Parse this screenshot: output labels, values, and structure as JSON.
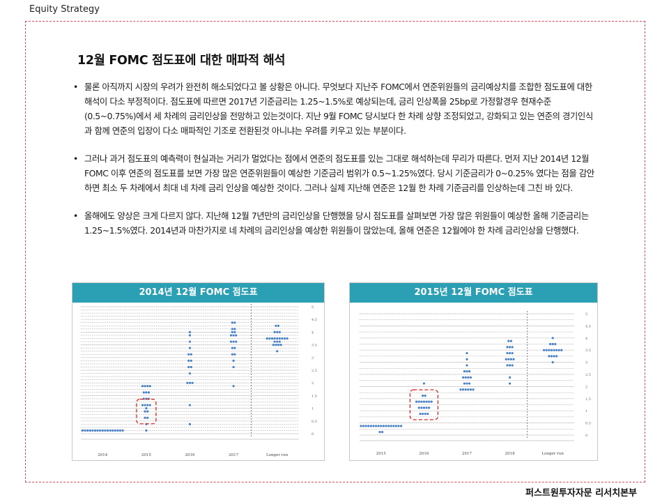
{
  "header": {
    "brand": "Equity Strategy"
  },
  "footer": {
    "company": "퍼스트원투자자문 리서치본부"
  },
  "page_title": "12월 FOMC 점도표에 대한 매파적 해석",
  "bullets": [
    "물론 아직까지 시장의 우려가 완전히 해소되었다고 볼 상황은 아니다. 무엇보다 지난주 FOMC에서 연준위원들의 금리예상치를 조합한 점도표에 대한 해석이 다소 부정적이다. 점도표에 따르면 2017년 기준금리는 1.25~1.5%로 예상되는데, 금리 인상폭을 25bp로 가정할경우 현재수준 (0.5~0.75%)에서 세 차례의 금리인상을 전망하고 있는것이다. 지난 9월 FOMC 당시보다 한 차례 상향 조정되었고, 강화되고 있는 연준의 경기인식과 함께 연준의 입장이 다소 매파적인 기조로 전환된것 아니냐는 우려를 키우고 있는 부분이다.",
    "그러나 과거 점도표의 예측력이 현실과는 거리가 멀었다는 점에서 연준의 점도표를 있는 그대로 해석하는데 무리가 따른다. 먼저 지난 2014년 12월 FOMC 이후 연준의 점도표를 보면 가장 많은 연준위원들이 예상한 기준금리 범위가 0.5~1.25%였다. 당시 기준금리가 0~0.25% 였다는 점을 감안하면 최소 두 차례에서 최대 네 차례 금리 인상을 예상한 것이다. 그러나 실제 지난해 연준은 12월 한 차례 기준금리를 인상하는데 그친 바 있다.",
    "올해에도 양상은 크게 다르지 않다. 지난해 12월 7년만의 금리인상을 단행했을 당시 점도표를 살펴보면 가장 많은 위원들이 예상한 올해 기준금리는 1.25~1.5%였다. 2014년과 마찬가지로 네 차례의 금리인상을 예상한 위원들이 많았는데, 올해 연준은 12월에야 한 차례 금리인상을 단행했다."
  ],
  "chart_data": [
    {
      "type": "scatter",
      "title": "2014년 12월 FOMC 점도표",
      "categories": [
        "2014",
        "2015",
        "2016",
        "2017",
        "Longer run"
      ],
      "y_ticks": [
        "0",
        "0.5",
        "1",
        "1.5",
        "2",
        "2.5",
        "3",
        "3.5",
        "4",
        "4.5",
        "5"
      ],
      "ylim": [
        0,
        5
      ],
      "highlight": {
        "category": "2015",
        "y_range": [
          0.5,
          1.25
        ],
        "color": "#dd3333"
      },
      "points": [
        {
          "x": "2014",
          "y": 0.125,
          "count": 17
        },
        {
          "x": "2015",
          "y": 0.125,
          "count": 1
        },
        {
          "x": "2015",
          "y": 0.375,
          "count": 1
        },
        {
          "x": "2015",
          "y": 0.625,
          "count": 2
        },
        {
          "x": "2015",
          "y": 0.875,
          "count": 2
        },
        {
          "x": "2015",
          "y": 1.0,
          "count": 1
        },
        {
          "x": "2015",
          "y": 1.125,
          "count": 4
        },
        {
          "x": "2015",
          "y": 1.375,
          "count": 3
        },
        {
          "x": "2015",
          "y": 1.625,
          "count": 3
        },
        {
          "x": "2015",
          "y": 1.875,
          "count": 4
        },
        {
          "x": "2016",
          "y": 0.375,
          "count": 1
        },
        {
          "x": "2016",
          "y": 1.125,
          "count": 1
        },
        {
          "x": "2016",
          "y": 2.0,
          "count": 3
        },
        {
          "x": "2016",
          "y": 2.375,
          "count": 1
        },
        {
          "x": "2016",
          "y": 2.625,
          "count": 2
        },
        {
          "x": "2016",
          "y": 2.875,
          "count": 2
        },
        {
          "x": "2016",
          "y": 3.125,
          "count": 2
        },
        {
          "x": "2016",
          "y": 3.375,
          "count": 1
        },
        {
          "x": "2016",
          "y": 3.625,
          "count": 1
        },
        {
          "x": "2016",
          "y": 3.875,
          "count": 1
        },
        {
          "x": "2016",
          "y": 4.0,
          "count": 1
        },
        {
          "x": "2017",
          "y": 1.875,
          "count": 1
        },
        {
          "x": "2017",
          "y": 2.625,
          "count": 1
        },
        {
          "x": "2017",
          "y": 2.875,
          "count": 1
        },
        {
          "x": "2017",
          "y": 3.125,
          "count": 2
        },
        {
          "x": "2017",
          "y": 3.375,
          "count": 2
        },
        {
          "x": "2017",
          "y": 3.625,
          "count": 3
        },
        {
          "x": "2017",
          "y": 3.875,
          "count": 3
        },
        {
          "x": "2017",
          "y": 4.0,
          "count": 2
        },
        {
          "x": "2017",
          "y": 4.125,
          "count": 2
        },
        {
          "x": "2017",
          "y": 4.375,
          "count": 2
        },
        {
          "x": "Longer run",
          "y": 3.25,
          "count": 1
        },
        {
          "x": "Longer run",
          "y": 3.5,
          "count": 4
        },
        {
          "x": "Longer run",
          "y": 3.625,
          "count": 3
        },
        {
          "x": "Longer run",
          "y": 3.75,
          "count": 9
        },
        {
          "x": "Longer run",
          "y": 4.0,
          "count": 3
        },
        {
          "x": "Longer run",
          "y": 4.25,
          "count": 2
        }
      ]
    },
    {
      "type": "scatter",
      "title": "2015년 12월 FOMC 점도표",
      "categories": [
        "2015",
        "2016",
        "2017",
        "2018",
        "Longer run"
      ],
      "y_ticks": [
        "0",
        "0.5",
        "1",
        "1.5",
        "2",
        "2.5",
        "3",
        "3.5",
        "4",
        "4.5",
        "5"
      ],
      "ylim": [
        0,
        5
      ],
      "highlight": {
        "category": "2016",
        "y_range": [
          0.75,
          1.75
        ],
        "color": "#dd3333"
      },
      "points": [
        {
          "x": "2015",
          "y": 0.125,
          "count": 2
        },
        {
          "x": "2015",
          "y": 0.375,
          "count": 17
        },
        {
          "x": "2016",
          "y": 0.875,
          "count": 4
        },
        {
          "x": "2016",
          "y": 1.125,
          "count": 5
        },
        {
          "x": "2016",
          "y": 1.375,
          "count": 7
        },
        {
          "x": "2016",
          "y": 1.625,
          "count": 2
        },
        {
          "x": "2016",
          "y": 2.125,
          "count": 1
        },
        {
          "x": "2017",
          "y": 1.875,
          "count": 6
        },
        {
          "x": "2017",
          "y": 2.125,
          "count": 3
        },
        {
          "x": "2017",
          "y": 2.375,
          "count": 4
        },
        {
          "x": "2017",
          "y": 2.625,
          "count": 3
        },
        {
          "x": "2017",
          "y": 2.875,
          "count": 1
        },
        {
          "x": "2017",
          "y": 3.125,
          "count": 1
        },
        {
          "x": "2017",
          "y": 3.375,
          "count": 1
        },
        {
          "x": "2018",
          "y": 2.125,
          "count": 1
        },
        {
          "x": "2018",
          "y": 2.375,
          "count": 1
        },
        {
          "x": "2018",
          "y": 2.875,
          "count": 3
        },
        {
          "x": "2018",
          "y": 3.125,
          "count": 4
        },
        {
          "x": "2018",
          "y": 3.375,
          "count": 3
        },
        {
          "x": "2018",
          "y": 3.625,
          "count": 3
        },
        {
          "x": "2018",
          "y": 3.875,
          "count": 2
        },
        {
          "x": "Longer run",
          "y": 3.0,
          "count": 1
        },
        {
          "x": "Longer run",
          "y": 3.25,
          "count": 4
        },
        {
          "x": "Longer run",
          "y": 3.5,
          "count": 8
        },
        {
          "x": "Longer run",
          "y": 3.75,
          "count": 3
        },
        {
          "x": "Longer run",
          "y": 4.0,
          "count": 1
        }
      ]
    }
  ]
}
